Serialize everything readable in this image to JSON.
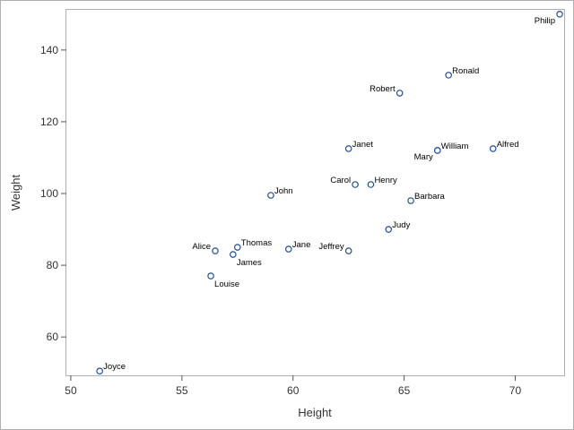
{
  "chart_data": {
    "type": "scatter",
    "xlabel": "Height",
    "ylabel": "Weight",
    "xlim": [
      49.8,
      72.2
    ],
    "ylim": [
      49.3,
      151.2
    ],
    "xticks": [
      50,
      55,
      60,
      65,
      70
    ],
    "yticks": [
      60,
      80,
      100,
      120,
      140
    ],
    "grid": false,
    "marker_color": "#1f4f9a",
    "points": [
      {
        "label": "Alfred",
        "x": 69.0,
        "y": 112.5,
        "pos": "right"
      },
      {
        "label": "Alice",
        "x": 56.5,
        "y": 84.0,
        "pos": "left"
      },
      {
        "label": "Barbara",
        "x": 65.3,
        "y": 98.0,
        "pos": "right"
      },
      {
        "label": "Carol",
        "x": 62.8,
        "y": 102.5,
        "pos": "left"
      },
      {
        "label": "Henry",
        "x": 63.5,
        "y": 102.5,
        "pos": "right"
      },
      {
        "label": "James",
        "x": 57.3,
        "y": 83.0,
        "pos": "below"
      },
      {
        "label": "Jane",
        "x": 59.8,
        "y": 84.5,
        "pos": "right"
      },
      {
        "label": "Janet",
        "x": 62.5,
        "y": 112.5,
        "pos": "right"
      },
      {
        "label": "Jeffrey",
        "x": 62.5,
        "y": 84.0,
        "pos": "left"
      },
      {
        "label": "John",
        "x": 59.0,
        "y": 99.5,
        "pos": "right"
      },
      {
        "label": "Joyce",
        "x": 51.3,
        "y": 50.5,
        "pos": "right"
      },
      {
        "label": "Judy",
        "x": 64.3,
        "y": 90.0,
        "pos": "right"
      },
      {
        "label": "Louise",
        "x": 56.3,
        "y": 77.0,
        "pos": "below"
      },
      {
        "label": "Mary",
        "x": 66.5,
        "y": 112.0,
        "pos": "belowleft"
      },
      {
        "label": "Philip",
        "x": 72.0,
        "y": 150.0,
        "pos": "belowleft"
      },
      {
        "label": "Robert",
        "x": 64.8,
        "y": 128.0,
        "pos": "left"
      },
      {
        "label": "Ronald",
        "x": 67.0,
        "y": 133.0,
        "pos": "right"
      },
      {
        "label": "Thomas",
        "x": 57.5,
        "y": 85.0,
        "pos": "right"
      },
      {
        "label": "William",
        "x": 66.5,
        "y": 112.0,
        "pos": "right"
      }
    ]
  }
}
